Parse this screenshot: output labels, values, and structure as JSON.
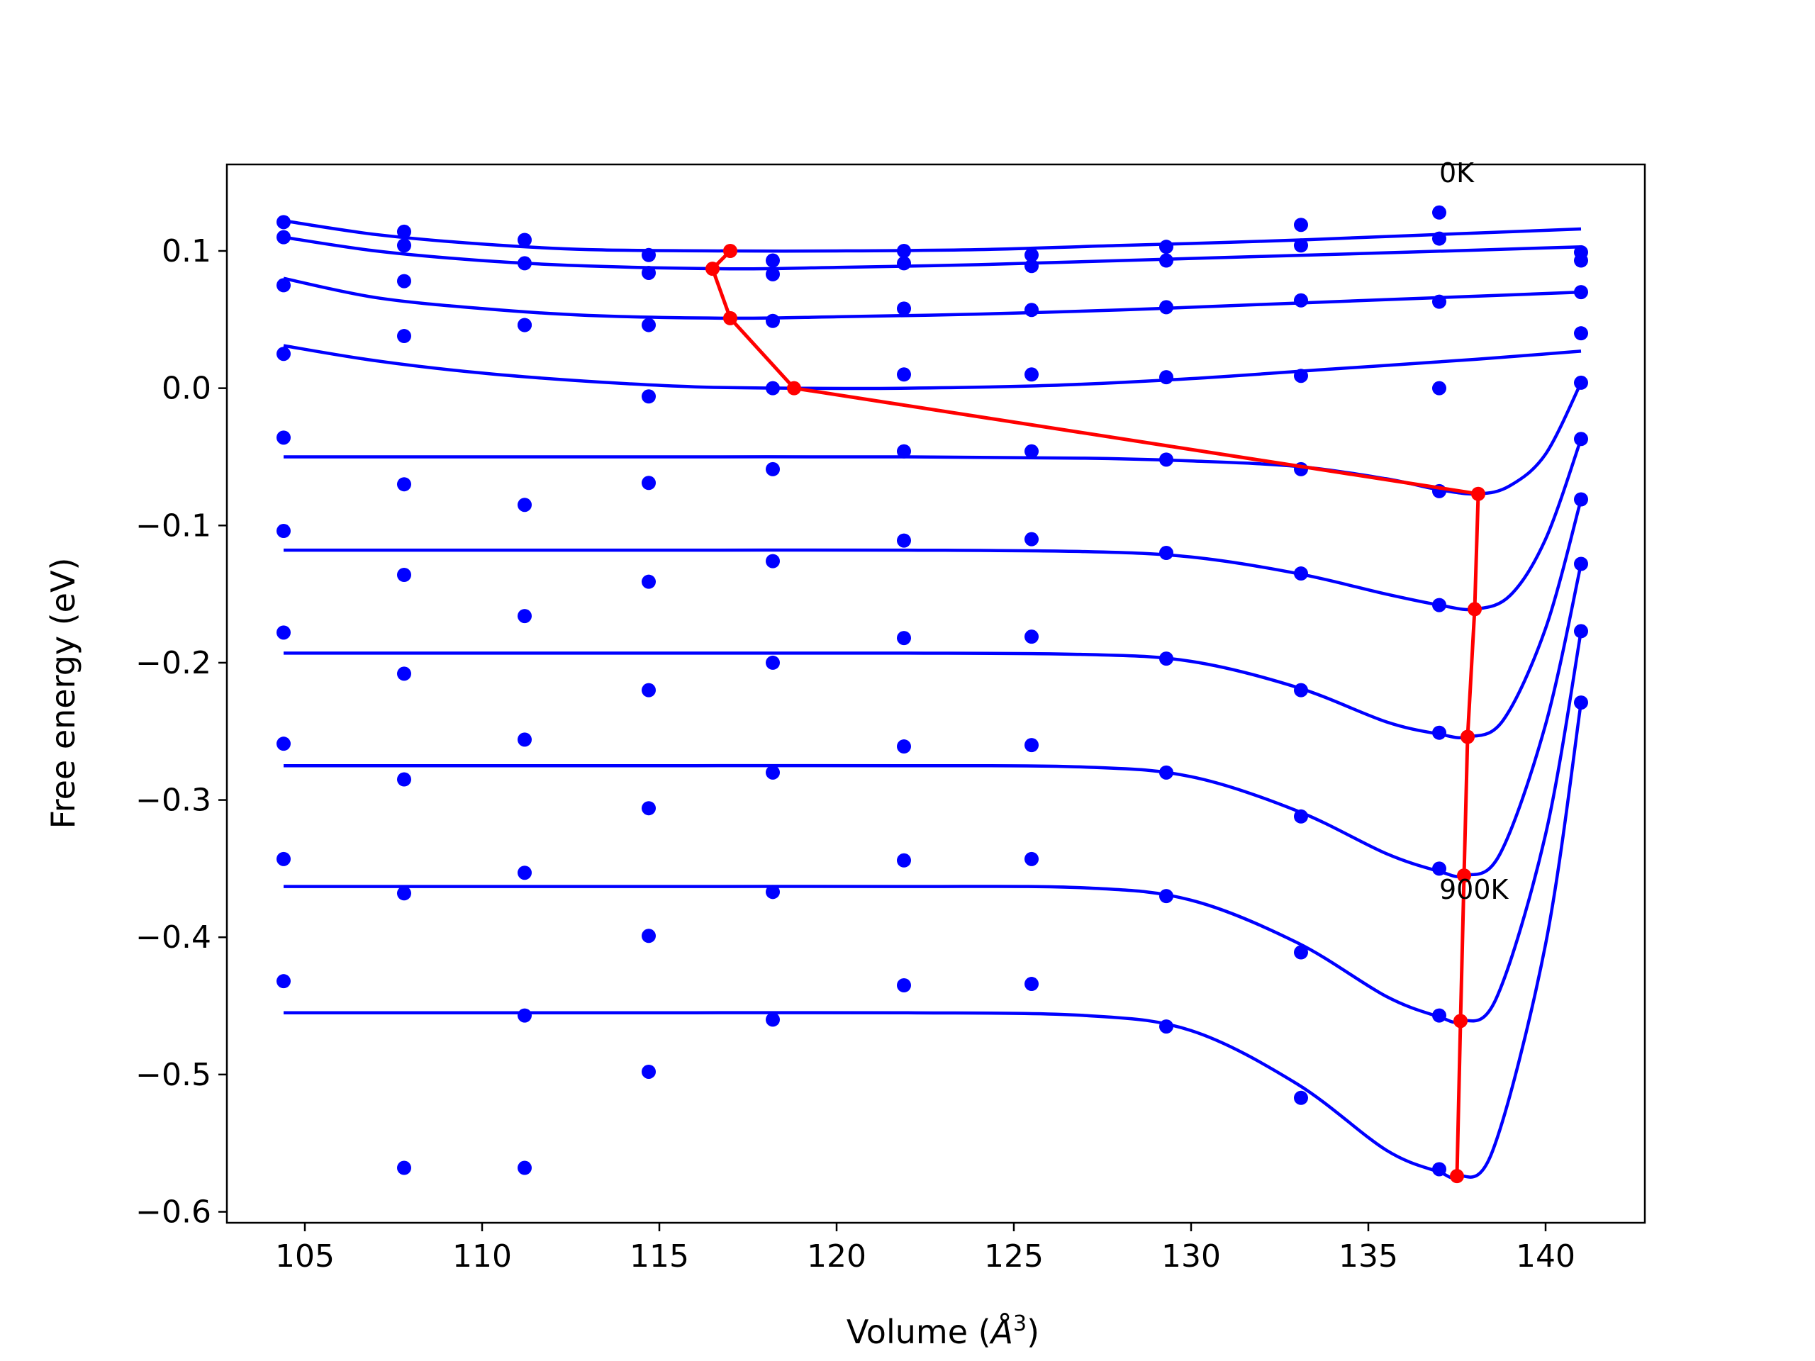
{
  "chart_data": {
    "type": "line",
    "xlabel": "Volume (",
    "xlabel_unit": "Å",
    "xlabel_exp": "3",
    "xlabel_end": ")",
    "ylabel": "Free energy (eV)",
    "xlim": [
      102.8,
      142.8
    ],
    "ylim": [
      -0.608,
      0.163
    ],
    "xticks": [
      105,
      110,
      115,
      120,
      125,
      130,
      135,
      140
    ],
    "xtick_labels": [
      "105",
      "110",
      "115",
      "120",
      "125",
      "130",
      "135",
      "140"
    ],
    "yticks": [
      0.1,
      0.0,
      -0.1,
      -0.2,
      -0.3,
      -0.4,
      -0.5,
      -0.6
    ],
    "ytick_labels": [
      "0.1",
      "0.0",
      "−0.1",
      "−0.2",
      "−0.3",
      "−0.4",
      "−0.5",
      "−0.6"
    ],
    "grid": false,
    "colors": {
      "fit": "#0000ff",
      "points": "#0000ff",
      "minima": "#ff0000"
    },
    "annotations": [
      {
        "text": "0K",
        "x": 137.0,
        "y": 0.15
      },
      {
        "text": "900K",
        "x": 137.0,
        "y": -0.372
      }
    ],
    "x_samples": [
      104.4,
      107.8,
      111.2,
      114.7,
      118.2,
      121.9,
      125.5,
      129.3,
      133.1,
      137.0,
      141.0
    ],
    "series": [
      {
        "points": [
          0.121,
          0.114,
          0.108,
          0.097,
          0.093,
          0.1,
          0.097,
          0.103,
          0.119,
          0.128,
          0.099
        ],
        "fit": [
          [
            104.4,
            0.122
          ],
          [
            107,
            0.112
          ],
          [
            110,
            0.105
          ],
          [
            113,
            0.101
          ],
          [
            117,
            0.1
          ],
          [
            120,
            0.1
          ],
          [
            124,
            0.101
          ],
          [
            128,
            0.104
          ],
          [
            132,
            0.107
          ],
          [
            136,
            0.111
          ],
          [
            141,
            0.116
          ]
        ]
      },
      {
        "points": [
          0.11,
          0.104,
          0.091,
          0.084,
          0.083,
          0.091,
          0.089,
          0.093,
          0.104,
          0.109,
          0.093
        ],
        "fit": [
          [
            104.4,
            0.11
          ],
          [
            107,
            0.1
          ],
          [
            110,
            0.093
          ],
          [
            113,
            0.089
          ],
          [
            117,
            0.087
          ],
          [
            120,
            0.088
          ],
          [
            124,
            0.09
          ],
          [
            128,
            0.093
          ],
          [
            132,
            0.096
          ],
          [
            136,
            0.099
          ],
          [
            141,
            0.103
          ]
        ]
      },
      {
        "points": [
          0.075,
          0.078,
          0.046,
          0.046,
          0.049,
          0.058,
          0.057,
          0.059,
          0.064,
          0.063,
          0.07
        ],
        "fit": [
          [
            104.4,
            0.08
          ],
          [
            107,
            0.066
          ],
          [
            110,
            0.058
          ],
          [
            113,
            0.053
          ],
          [
            117,
            0.051
          ],
          [
            120,
            0.052
          ],
          [
            124,
            0.054
          ],
          [
            128,
            0.057
          ],
          [
            132,
            0.061
          ],
          [
            136,
            0.065
          ],
          [
            141,
            0.07
          ]
        ]
      },
      {
        "points": [
          0.025,
          0.038,
          0.046,
          -0.006,
          0.0,
          0.01,
          0.01,
          0.008,
          0.009,
          0.0,
          0.04
        ],
        "fit": [
          [
            104.4,
            0.031
          ],
          [
            107,
            0.02
          ],
          [
            110,
            0.011
          ],
          [
            113,
            0.005
          ],
          [
            116,
            0.001
          ],
          [
            118.8,
            0.0
          ],
          [
            122,
            0.0
          ],
          [
            126,
            0.002
          ],
          [
            130,
            0.007
          ],
          [
            134,
            0.014
          ],
          [
            138,
            0.021
          ],
          [
            141,
            0.027
          ]
        ]
      },
      {
        "points": [
          -0.036,
          -0.07,
          -0.085,
          -0.069,
          -0.059,
          -0.046,
          -0.046,
          -0.052,
          -0.059,
          -0.075,
          0.004
        ],
        "fit": [
          [
            104.4,
            -0.05
          ],
          [
            110,
            -0.05
          ],
          [
            116,
            -0.05
          ],
          [
            122,
            -0.05
          ],
          [
            127,
            -0.051
          ],
          [
            130,
            -0.053
          ],
          [
            133,
            -0.057
          ],
          [
            135.5,
            -0.066
          ],
          [
            137,
            -0.074
          ],
          [
            138.1,
            -0.077
          ],
          [
            139,
            -0.071
          ],
          [
            140,
            -0.048
          ],
          [
            141,
            0.004
          ]
        ]
      },
      {
        "points": [
          -0.104,
          -0.136,
          -0.166,
          -0.141,
          -0.126,
          -0.111,
          -0.11,
          -0.12,
          -0.135,
          -0.158,
          -0.037
        ],
        "fit": [
          [
            104.4,
            -0.118
          ],
          [
            110,
            -0.118
          ],
          [
            116,
            -0.118
          ],
          [
            122,
            -0.118
          ],
          [
            127,
            -0.119
          ],
          [
            130,
            -0.123
          ],
          [
            133,
            -0.135
          ],
          [
            135.5,
            -0.15
          ],
          [
            137,
            -0.158
          ],
          [
            138,
            -0.161
          ],
          [
            139,
            -0.151
          ],
          [
            140,
            -0.11
          ],
          [
            141,
            -0.037
          ]
        ]
      },
      {
        "points": [
          -0.178,
          -0.208,
          -0.256,
          -0.22,
          -0.2,
          -0.182,
          -0.181,
          -0.197,
          -0.22,
          -0.251,
          -0.081
        ],
        "fit": [
          [
            104.4,
            -0.193
          ],
          [
            110,
            -0.193
          ],
          [
            116,
            -0.193
          ],
          [
            122,
            -0.193
          ],
          [
            127,
            -0.194
          ],
          [
            130,
            -0.199
          ],
          [
            133,
            -0.218
          ],
          [
            135.5,
            -0.243
          ],
          [
            137,
            -0.252
          ],
          [
            137.8,
            -0.254
          ],
          [
            138.8,
            -0.242
          ],
          [
            140,
            -0.175
          ],
          [
            141,
            -0.081
          ]
        ]
      },
      {
        "points": [
          -0.259,
          -0.285,
          -0.353,
          -0.306,
          -0.28,
          -0.261,
          -0.26,
          -0.28,
          -0.312,
          -0.35,
          -0.128
        ],
        "fit": [
          [
            104.4,
            -0.275
          ],
          [
            110,
            -0.275
          ],
          [
            116,
            -0.275
          ],
          [
            122,
            -0.275
          ],
          [
            127,
            -0.276
          ],
          [
            130,
            -0.283
          ],
          [
            133,
            -0.308
          ],
          [
            135.5,
            -0.339
          ],
          [
            137,
            -0.352
          ],
          [
            137.7,
            -0.355
          ],
          [
            138.7,
            -0.34
          ],
          [
            140,
            -0.245
          ],
          [
            141,
            -0.128
          ]
        ]
      },
      {
        "points": [
          -0.343,
          -0.368,
          -0.457,
          -0.399,
          -0.367,
          -0.344,
          -0.343,
          -0.37,
          -0.411,
          -0.457,
          -0.177
        ],
        "fit": [
          [
            104.4,
            -0.363
          ],
          [
            110,
            -0.363
          ],
          [
            116,
            -0.363
          ],
          [
            122,
            -0.363
          ],
          [
            127,
            -0.364
          ],
          [
            130,
            -0.373
          ],
          [
            133,
            -0.404
          ],
          [
            135.5,
            -0.443
          ],
          [
            137,
            -0.458
          ],
          [
            137.6,
            -0.461
          ],
          [
            138.6,
            -0.445
          ],
          [
            140,
            -0.325
          ],
          [
            141,
            -0.177
          ]
        ]
      },
      {
        "points": [
          -0.432,
          -0.568,
          -0.568,
          -0.498,
          -0.46,
          -0.435,
          -0.434,
          -0.465,
          -0.517,
          -0.569,
          -0.229
        ],
        "fit": [
          [
            104.4,
            -0.455
          ],
          [
            110,
            -0.455
          ],
          [
            116,
            -0.455
          ],
          [
            122,
            -0.455
          ],
          [
            127,
            -0.457
          ],
          [
            130,
            -0.468
          ],
          [
            133,
            -0.507
          ],
          [
            135.5,
            -0.555
          ],
          [
            137,
            -0.571
          ],
          [
            137.5,
            -0.574
          ],
          [
            138.5,
            -0.556
          ],
          [
            140,
            -0.405
          ],
          [
            141,
            -0.229
          ]
        ]
      }
    ],
    "minima": {
      "x": [
        117.0,
        116.5,
        117.0,
        118.8,
        138.1,
        138.0,
        137.8,
        137.7,
        137.6,
        137.5
      ],
      "y": [
        0.1,
        0.087,
        0.051,
        0.0,
        -0.077,
        -0.161,
        -0.254,
        -0.355,
        -0.461,
        -0.574
      ]
    }
  }
}
